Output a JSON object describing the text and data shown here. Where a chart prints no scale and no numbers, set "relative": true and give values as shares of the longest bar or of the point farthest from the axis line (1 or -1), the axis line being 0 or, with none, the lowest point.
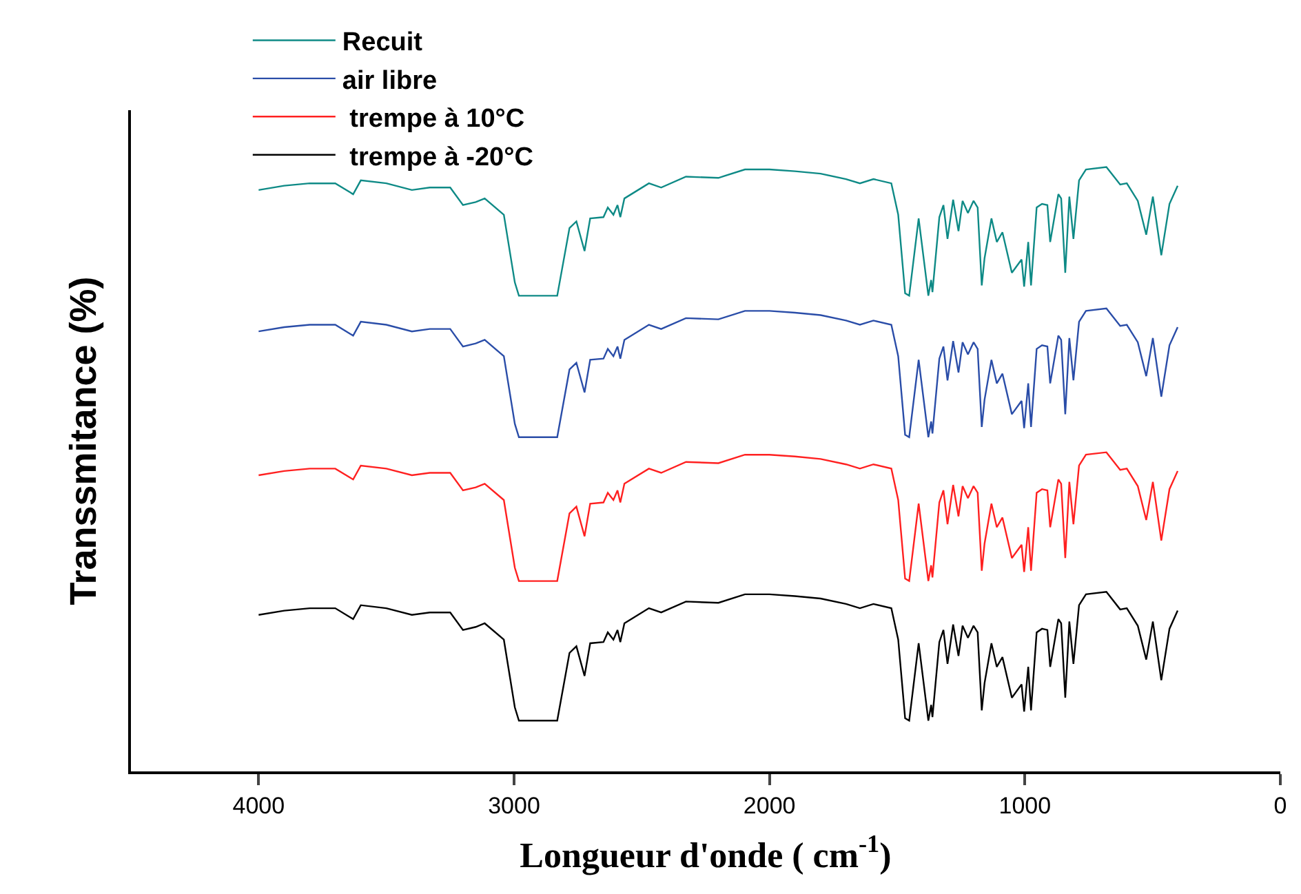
{
  "chart_data": {
    "type": "line",
    "relative": true,
    "xlabel": "Longueur d'onde ( cm$^{-1}$)",
    "ylabel": "Transsmitance (%)",
    "x": [
      4000,
      3900,
      3800,
      3700,
      3630,
      3600,
      3500,
      3400,
      3330,
      3250,
      3200,
      3150,
      3115,
      3040,
      2997,
      2981,
      2831,
      2783,
      2756,
      2724,
      2702,
      2650,
      2633,
      2611,
      2595,
      2584,
      2568,
      2472,
      2424,
      2327,
      2200,
      2096,
      2000,
      1900,
      1800,
      1700,
      1646,
      1593,
      1523,
      1496,
      1469,
      1453,
      1416,
      1378,
      1367,
      1362,
      1335,
      1319,
      1303,
      1281,
      1260,
      1244,
      1223,
      1201,
      1185,
      1169,
      1158,
      1131,
      1110,
      1088,
      1051,
      1013,
      1003,
      987,
      976,
      954,
      933,
      912,
      901,
      869,
      858,
      842,
      826,
      810,
      788,
      761,
      681,
      627,
      601,
      558,
      525,
      499,
      466,
      434,
      402
    ],
    "xlim": [
      4500,
      0
    ],
    "xticks": [
      4000,
      3000,
      2000,
      1000,
      0
    ],
    "legend": "top left",
    "marker": "none",
    "line_style": "solid",
    "series": [
      {
        "name": "Recuit",
        "color": "#0e8a86",
        "values": [
          0.962,
          0.969,
          0.973,
          0.973,
          0.955,
          0.978,
          0.973,
          0.962,
          0.966,
          0.966,
          0.937,
          0.942,
          0.948,
          0.921,
          0.809,
          0.787,
          0.787,
          0.899,
          0.91,
          0.861,
          0.915,
          0.917,
          0.933,
          0.921,
          0.937,
          0.917,
          0.948,
          0.973,
          0.966,
          0.984,
          0.982,
          0.996,
          0.996,
          0.993,
          0.989,
          0.98,
          0.973,
          0.98,
          0.973,
          0.921,
          0.791,
          0.787,
          0.915,
          0.787,
          0.813,
          0.793,
          0.917,
          0.937,
          0.881,
          0.946,
          0.894,
          0.944,
          0.924,
          0.944,
          0.933,
          0.804,
          0.849,
          0.915,
          0.876,
          0.892,
          0.825,
          0.847,
          0.802,
          0.876,
          0.804,
          0.933,
          0.939,
          0.937,
          0.876,
          0.955,
          0.948,
          0.825,
          0.951,
          0.881,
          0.978,
          0.996,
          1.0,
          0.971,
          0.973,
          0.944,
          0.888,
          0.951,
          0.854,
          0.939,
          0.969
        ]
      },
      {
        "name": "air libre",
        "color": "#2a4da8",
        "values": [
          0.728,
          0.735,
          0.739,
          0.739,
          0.721,
          0.744,
          0.739,
          0.728,
          0.732,
          0.732,
          0.703,
          0.708,
          0.714,
          0.687,
          0.575,
          0.553,
          0.553,
          0.665,
          0.676,
          0.627,
          0.681,
          0.683,
          0.699,
          0.687,
          0.703,
          0.683,
          0.714,
          0.739,
          0.732,
          0.75,
          0.748,
          0.762,
          0.762,
          0.759,
          0.755,
          0.746,
          0.739,
          0.746,
          0.739,
          0.687,
          0.557,
          0.553,
          0.681,
          0.553,
          0.579,
          0.559,
          0.683,
          0.703,
          0.647,
          0.712,
          0.66,
          0.71,
          0.69,
          0.71,
          0.699,
          0.57,
          0.615,
          0.681,
          0.642,
          0.658,
          0.591,
          0.613,
          0.568,
          0.642,
          0.57,
          0.699,
          0.705,
          0.703,
          0.642,
          0.721,
          0.714,
          0.591,
          0.717,
          0.647,
          0.744,
          0.762,
          0.766,
          0.737,
          0.739,
          0.71,
          0.654,
          0.717,
          0.62,
          0.705,
          0.735
        ]
      },
      {
        "name": " trempe à 10°C",
        "color": "#ff2020",
        "values": [
          0.49,
          0.497,
          0.501,
          0.501,
          0.483,
          0.506,
          0.501,
          0.49,
          0.494,
          0.494,
          0.465,
          0.47,
          0.476,
          0.449,
          0.337,
          0.315,
          0.315,
          0.427,
          0.438,
          0.389,
          0.443,
          0.445,
          0.461,
          0.449,
          0.465,
          0.445,
          0.476,
          0.501,
          0.494,
          0.512,
          0.51,
          0.524,
          0.524,
          0.521,
          0.517,
          0.508,
          0.501,
          0.508,
          0.501,
          0.449,
          0.319,
          0.315,
          0.443,
          0.315,
          0.341,
          0.321,
          0.445,
          0.465,
          0.409,
          0.474,
          0.422,
          0.472,
          0.452,
          0.472,
          0.461,
          0.332,
          0.377,
          0.443,
          0.404,
          0.42,
          0.353,
          0.375,
          0.33,
          0.404,
          0.332,
          0.461,
          0.467,
          0.465,
          0.404,
          0.483,
          0.476,
          0.353,
          0.479,
          0.409,
          0.506,
          0.524,
          0.528,
          0.499,
          0.501,
          0.472,
          0.416,
          0.479,
          0.382,
          0.467,
          0.497
        ]
      },
      {
        "name": " trempe à -20°C",
        "color": "#000000",
        "values": [
          0.259,
          0.266,
          0.27,
          0.27,
          0.252,
          0.275,
          0.27,
          0.259,
          0.263,
          0.263,
          0.234,
          0.239,
          0.245,
          0.218,
          0.106,
          0.084,
          0.084,
          0.196,
          0.207,
          0.158,
          0.212,
          0.214,
          0.23,
          0.218,
          0.234,
          0.214,
          0.245,
          0.27,
          0.263,
          0.281,
          0.279,
          0.293,
          0.293,
          0.29,
          0.286,
          0.277,
          0.27,
          0.277,
          0.27,
          0.218,
          0.088,
          0.084,
          0.212,
          0.084,
          0.11,
          0.09,
          0.214,
          0.234,
          0.178,
          0.243,
          0.191,
          0.241,
          0.221,
          0.241,
          0.23,
          0.101,
          0.146,
          0.212,
          0.173,
          0.189,
          0.122,
          0.144,
          0.099,
          0.173,
          0.101,
          0.23,
          0.236,
          0.234,
          0.173,
          0.252,
          0.245,
          0.122,
          0.248,
          0.178,
          0.275,
          0.293,
          0.297,
          0.268,
          0.27,
          0.241,
          0.185,
          0.248,
          0.151,
          0.236,
          0.266
        ]
      }
    ]
  }
}
